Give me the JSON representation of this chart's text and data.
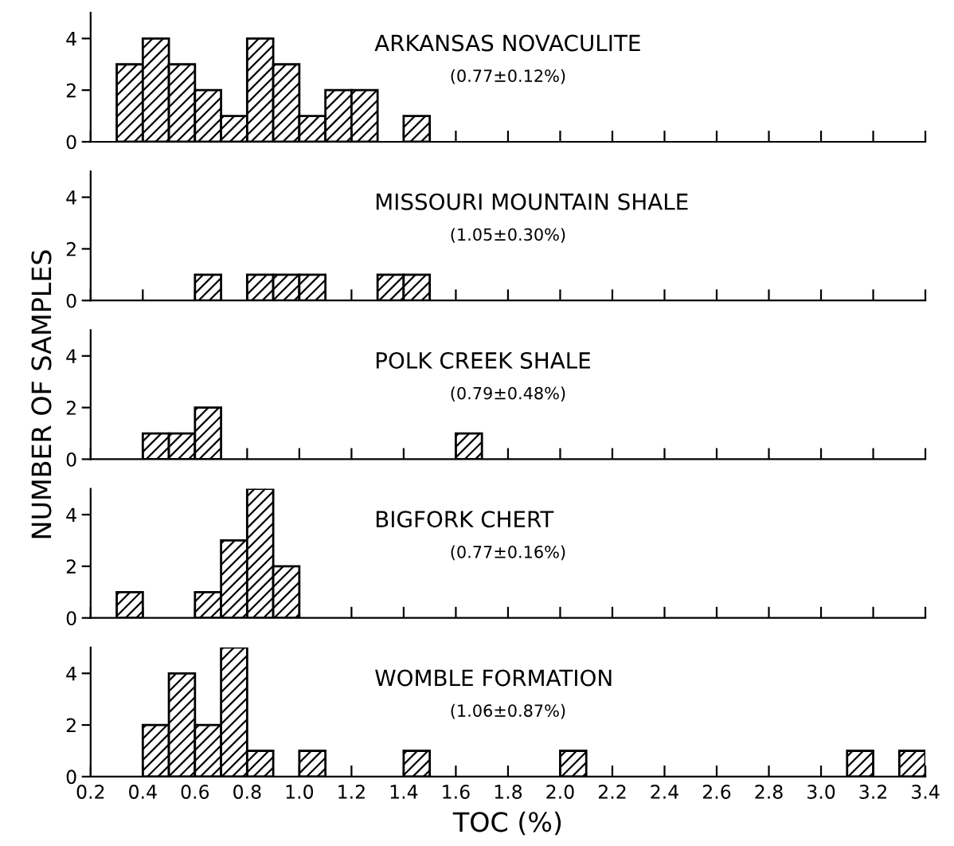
{
  "chart_data": [
    {
      "type": "histogram",
      "title": "ARKANSAS NOVACULITE",
      "subtitle": "(0.77±0.12%)",
      "bins": [
        0.2,
        0.3,
        0.4,
        0.5,
        0.6,
        0.7,
        0.8,
        0.9,
        1.0,
        1.1,
        1.2,
        1.3,
        1.4,
        1.5,
        1.6,
        1.7,
        1.8,
        1.9,
        2.0,
        2.1,
        2.2,
        2.3,
        2.4,
        2.5,
        2.6,
        2.7,
        2.8,
        2.9,
        3.0,
        3.1,
        3.2,
        3.3,
        3.4
      ],
      "values": [
        0,
        3,
        4,
        3,
        2,
        1,
        4,
        3,
        1,
        2,
        2,
        0,
        1,
        0,
        0,
        0,
        0,
        0,
        0,
        0,
        0,
        0,
        0,
        0,
        0,
        0,
        0,
        0,
        0,
        0,
        0,
        0
      ],
      "xlim": [
        0.2,
        3.4
      ],
      "ylim": [
        0,
        5
      ],
      "yticks": [
        0,
        2,
        4
      ],
      "tick_labels": "y"
    },
    {
      "type": "histogram",
      "title": "MISSOURI MOUNTAIN SHALE",
      "subtitle": "(1.05±0.30%)",
      "bins": [
        0.2,
        0.3,
        0.4,
        0.5,
        0.6,
        0.7,
        0.8,
        0.9,
        1.0,
        1.1,
        1.2,
        1.3,
        1.4,
        1.5,
        1.6,
        1.7,
        1.8,
        1.9,
        2.0,
        2.1,
        2.2,
        2.3,
        2.4,
        2.5,
        2.6,
        2.7,
        2.8,
        2.9,
        3.0,
        3.1,
        3.2,
        3.3,
        3.4
      ],
      "values": [
        0,
        0,
        0,
        0,
        1,
        0,
        1,
        1,
        1,
        0,
        0,
        1,
        1,
        0,
        0,
        0,
        0,
        0,
        0,
        0,
        0,
        0,
        0,
        0,
        0,
        0,
        0,
        0,
        0,
        0,
        0,
        0
      ],
      "xlim": [
        0.2,
        3.4
      ],
      "ylim": [
        0,
        5
      ],
      "yticks": [
        0,
        2,
        4
      ],
      "tick_labels": "y"
    },
    {
      "type": "histogram",
      "title": "POLK CREEK SHALE",
      "subtitle": "(0.79±0.48%)",
      "ylabel": "NUMBER OF SAMPLES",
      "bins": [
        0.2,
        0.3,
        0.4,
        0.5,
        0.6,
        0.7,
        0.8,
        0.9,
        1.0,
        1.1,
        1.2,
        1.3,
        1.4,
        1.5,
        1.6,
        1.7,
        1.8,
        1.9,
        2.0,
        2.1,
        2.2,
        2.3,
        2.4,
        2.5,
        2.6,
        2.7,
        2.8,
        2.9,
        3.0,
        3.1,
        3.2,
        3.3,
        3.4
      ],
      "values": [
        0,
        0,
        1,
        1,
        2,
        0,
        0,
        0,
        0,
        0,
        0,
        0,
        0,
        0,
        1,
        0,
        0,
        0,
        0,
        0,
        0,
        0,
        0,
        0,
        0,
        0,
        0,
        0,
        0,
        0,
        0,
        0
      ],
      "xlim": [
        0.2,
        3.4
      ],
      "ylim": [
        0,
        5
      ],
      "yticks": [
        0,
        2,
        4
      ],
      "tick_labels": "y"
    },
    {
      "type": "histogram",
      "title": "BIGFORK CHERT",
      "subtitle": "(0.77±0.16%)",
      "bins": [
        0.2,
        0.3,
        0.4,
        0.5,
        0.6,
        0.7,
        0.8,
        0.9,
        1.0,
        1.1,
        1.2,
        1.3,
        1.4,
        1.5,
        1.6,
        1.7,
        1.8,
        1.9,
        2.0,
        2.1,
        2.2,
        2.3,
        2.4,
        2.5,
        2.6,
        2.7,
        2.8,
        2.9,
        3.0,
        3.1,
        3.2,
        3.3,
        3.4
      ],
      "values": [
        0,
        1,
        0,
        0,
        1,
        3,
        5,
        2,
        0,
        0,
        0,
        0,
        0,
        0,
        0,
        0,
        0,
        0,
        0,
        0,
        0,
        0,
        0,
        0,
        0,
        0,
        0,
        0,
        0,
        0,
        0,
        0
      ],
      "xlim": [
        0.2,
        3.4
      ],
      "ylim": [
        0,
        5
      ],
      "yticks": [
        0,
        2,
        4
      ],
      "tick_labels": "y"
    },
    {
      "type": "histogram",
      "title": "WOMBLE FORMATION",
      "subtitle": "(1.06±0.87%)",
      "xlabel": "TOC (%)",
      "bins": [
        0.2,
        0.3,
        0.4,
        0.5,
        0.6,
        0.7,
        0.8,
        0.9,
        1.0,
        1.1,
        1.2,
        1.3,
        1.4,
        1.5,
        1.6,
        1.7,
        1.8,
        1.9,
        2.0,
        2.1,
        2.2,
        2.3,
        2.4,
        2.5,
        2.6,
        2.7,
        2.8,
        2.9,
        3.0,
        3.1,
        3.2,
        3.3,
        3.4
      ],
      "values": [
        0,
        0,
        2,
        4,
        2,
        5,
        1,
        0,
        1,
        0,
        0,
        0,
        1,
        0,
        0,
        0,
        0,
        0,
        1,
        0,
        0,
        0,
        0,
        0,
        0,
        0,
        0,
        0,
        0,
        1,
        0,
        1
      ],
      "xlim": [
        0.2,
        3.4
      ],
      "ylim": [
        0,
        5
      ],
      "yticks": [
        0,
        2,
        4
      ],
      "xticks": [
        0.2,
        0.4,
        0.6,
        0.8,
        {
          "value": 1.0,
          "label": "1.0"
        },
        1.2,
        1.4,
        1.6,
        1.8,
        {
          "value": 2.0,
          "label": "2.0"
        },
        2.2,
        2.4,
        2.6,
        2.8,
        {
          "value": 3.0,
          "label": "3.0"
        },
        3.2,
        3.4
      ]
    }
  ]
}
